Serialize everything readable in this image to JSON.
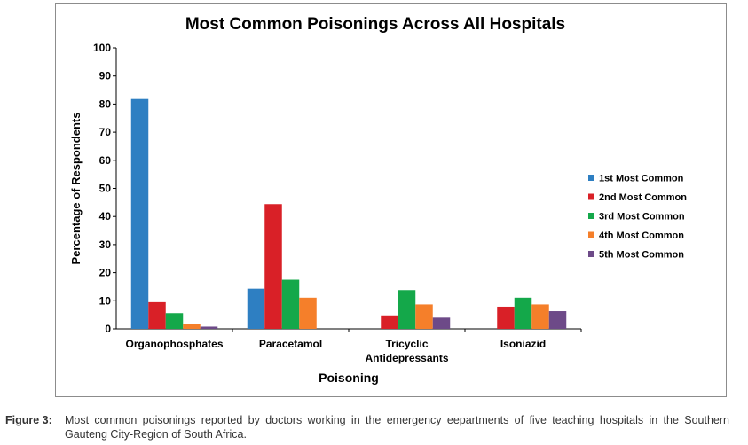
{
  "chart_data": {
    "type": "bar",
    "title": "Most Common Poisonings Across All Hospitals",
    "xlabel": "Poisoning",
    "ylabel": "Percentage of Respondents",
    "ylim": [
      0,
      100
    ],
    "yticks": [
      0,
      10,
      20,
      30,
      40,
      50,
      60,
      70,
      80,
      90,
      100
    ],
    "grid": false,
    "legend_position": "right",
    "categories": [
      [
        "Organophosphates"
      ],
      [
        "Paracetamol"
      ],
      [
        "Tricyclic",
        "Antidepressants"
      ],
      [
        "Isoniazid"
      ]
    ],
    "series": [
      {
        "name": "1st Most Common",
        "color": "#2e7fc2",
        "values": [
          81.8,
          14.3,
          0,
          0
        ]
      },
      {
        "name": "2nd Most Common",
        "color": "#d92027",
        "values": [
          9.5,
          44.4,
          4.8,
          7.9
        ]
      },
      {
        "name": "3rd Most Common",
        "color": "#14a84a",
        "values": [
          5.6,
          17.5,
          13.8,
          11.1
        ]
      },
      {
        "name": "4th Most Common",
        "color": "#f57f2a",
        "values": [
          1.6,
          11.1,
          8.7,
          8.7
        ]
      },
      {
        "name": "5th Most Common",
        "color": "#6d4a88",
        "values": [
          0.8,
          0,
          4.0,
          6.3
        ]
      }
    ]
  },
  "caption": {
    "label": "Figure 3:",
    "text": "Most common poisonings reported by doctors working in the emergency eepartments of five teaching hospitals in the Southern Gauteng City-Region of South Africa."
  }
}
